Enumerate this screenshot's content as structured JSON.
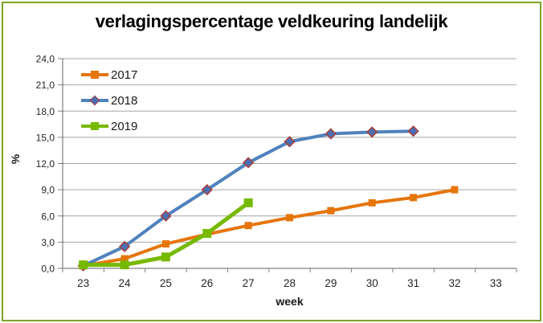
{
  "frame": {
    "border_color": "#7BA428",
    "background": "#FFFFFF"
  },
  "chart_data": {
    "type": "line",
    "title": "verlagingspercentage veldkeuring landelijk",
    "xlabel": "week",
    "ylabel": "%",
    "x": [
      23,
      24,
      25,
      26,
      27,
      28,
      29,
      30,
      31,
      32,
      33
    ],
    "xticks": [
      "23",
      "24",
      "25",
      "26",
      "27",
      "28",
      "29",
      "30",
      "31",
      "32",
      "33"
    ],
    "ylim": [
      0,
      24
    ],
    "ytick_step": 3,
    "yticks": [
      "0,0",
      "3,0",
      "6,0",
      "9,0",
      "12,0",
      "15,0",
      "18,0",
      "21,0",
      "24,0"
    ],
    "grid": "horizontal",
    "legend_position": "top-left-inside",
    "axis_color": "#808080",
    "grid_color": "#A6A6A6",
    "tick_label_color": "#262626",
    "title_color": "#000000",
    "series": [
      {
        "name": "2017",
        "color": "#E6750A",
        "marker": "square",
        "marker_fill": "#E6750A",
        "marker_border": "",
        "marker_size": 9,
        "line_width": 4,
        "weeks": [
          23,
          24,
          25,
          26,
          27,
          28,
          29,
          30,
          31,
          32
        ],
        "values": [
          0.3,
          1.1,
          2.8,
          3.9,
          4.9,
          5.8,
          6.6,
          7.5,
          8.1,
          9.0
        ]
      },
      {
        "name": "2018",
        "color": "#4F81BD",
        "marker": "diamond",
        "marker_fill": "#4A6FB5",
        "marker_border": "#A5403D",
        "marker_size": 8.5,
        "line_width": 4,
        "weeks": [
          23,
          24,
          25,
          26,
          27,
          28,
          29,
          30,
          31
        ],
        "values": [
          0.3,
          2.5,
          6.0,
          9.0,
          12.1,
          14.5,
          15.4,
          15.6,
          15.7
        ]
      },
      {
        "name": "2019",
        "color": "#77B900",
        "marker": "square",
        "marker_fill": "#77B900",
        "marker_border": "",
        "marker_size": 11,
        "line_width": 5,
        "weeks": [
          23,
          24,
          25,
          26,
          27
        ],
        "values": [
          0.4,
          0.4,
          1.3,
          4.0,
          7.5
        ]
      }
    ]
  }
}
